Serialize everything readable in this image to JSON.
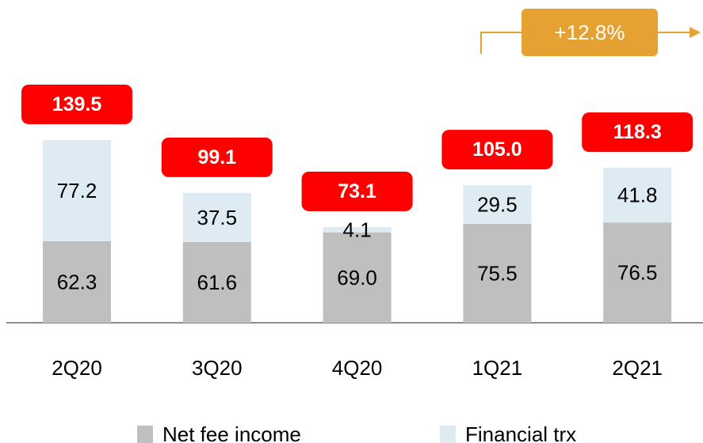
{
  "chart_data": {
    "type": "stacked_bar",
    "categories": [
      "2Q20",
      "3Q20",
      "4Q20",
      "1Q21",
      "2Q21"
    ],
    "series": [
      {
        "name": "Net fee income",
        "color": "#bfbfbf",
        "values": [
          62.3,
          61.6,
          69.0,
          75.5,
          76.5
        ],
        "value_labels": [
          "62.3",
          "61.6",
          "69.0",
          "75.5",
          "76.5"
        ]
      },
      {
        "name": "Financial trx",
        "color": "#deebf2",
        "values": [
          77.2,
          37.5,
          4.1,
          29.5,
          41.8
        ],
        "value_labels": [
          "77.2",
          "37.5",
          "4.1",
          "29.5",
          "41.8"
        ]
      }
    ],
    "totals": {
      "color": "#ff0000",
      "values": [
        139.5,
        99.1,
        73.1,
        105.0,
        118.3
      ],
      "value_labels": [
        "139.5",
        "99.1",
        "73.1",
        "105.0",
        "118.3"
      ]
    },
    "annotation": {
      "text": "+12.8%",
      "color": "#e6a133"
    }
  }
}
